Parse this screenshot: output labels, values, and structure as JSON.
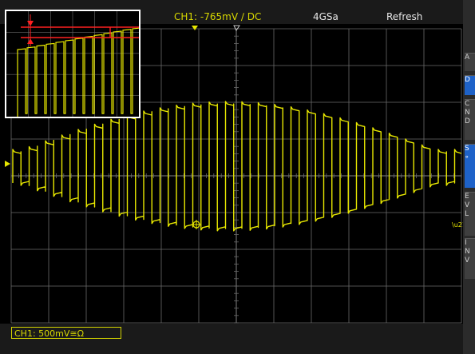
{
  "top_bar": {
    "trigger": "CH1: -765mV ∕ DC",
    "sample_rate": "4GSa",
    "acquire_mode": "Refresh"
  },
  "bottom_bar": {
    "channel_scale": "CH1: 500mV≅Ω"
  },
  "right_panel": {
    "items": [
      "A",
      "D",
      "C\nN\nD",
      "S\n∘",
      "E\nV\nL",
      "I\nN\nV"
    ]
  },
  "colors": {
    "trace": "#e8e800",
    "grid": "#6a6a6a",
    "cursor": "#ff2020",
    "panel_blue": "#1e62c8"
  },
  "icons": {
    "trigger_position_marker": "down-triangle-icon",
    "channel_marker": "arrow-icon",
    "cursor_marker": "crosshair-icon"
  }
}
